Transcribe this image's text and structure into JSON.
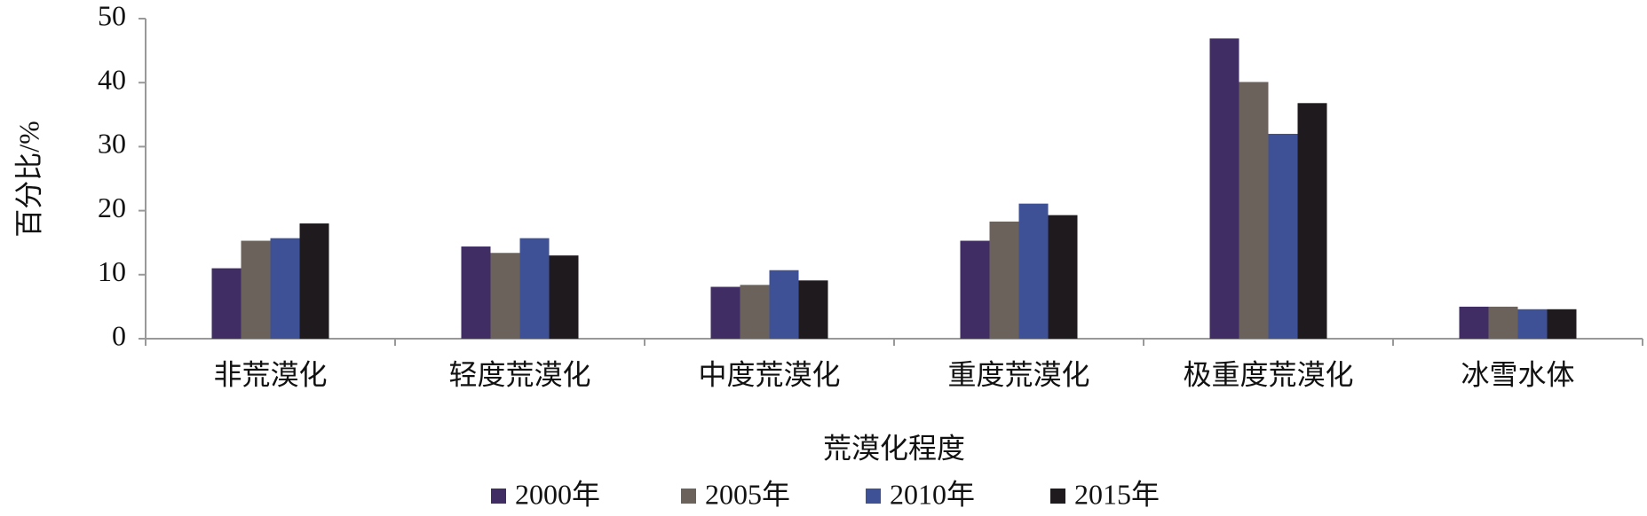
{
  "chart_data": {
    "type": "bar",
    "x_label": "荒漠化程度",
    "y_label": "百分比/%",
    "categories": [
      "非荒漠化",
      "轻度荒漠化",
      "中度荒漠化",
      "重度荒漠化",
      "极重度荒漠化",
      "冰雪水体"
    ],
    "series": [
      {
        "name": "2000年",
        "color": "#3f2d63",
        "values": [
          11,
          14.4,
          8.1,
          15.3,
          46.9,
          5
        ]
      },
      {
        "name": "2005年",
        "color": "#6b625c",
        "values": [
          15.3,
          13.4,
          8.4,
          18.3,
          40.1,
          5
        ]
      },
      {
        "name": "2010年",
        "color": "#3f5196",
        "values": [
          15.7,
          15.7,
          10.7,
          21.1,
          32,
          4.6
        ]
      },
      {
        "name": "2015年",
        "color": "#1f1a1e",
        "values": [
          18,
          13,
          9.1,
          19.3,
          36.8,
          4.6
        ]
      }
    ],
    "ylim": [
      0,
      50
    ],
    "yticks": [
      0,
      10,
      20,
      30,
      40,
      50
    ],
    "legend": "bottom"
  }
}
